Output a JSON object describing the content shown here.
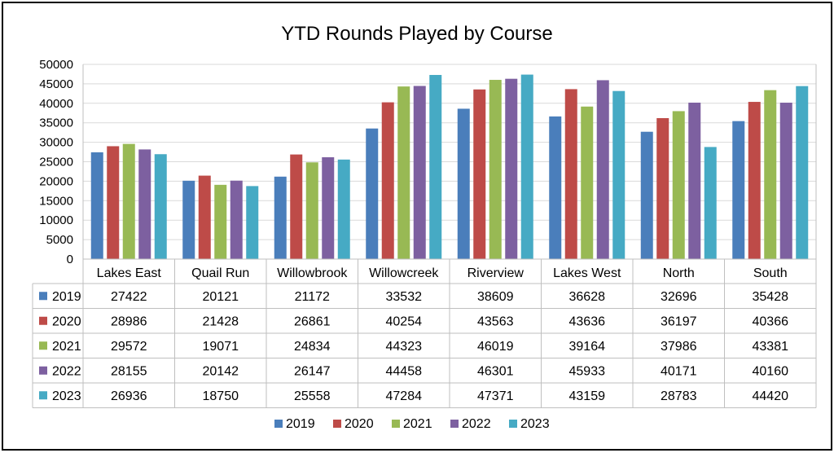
{
  "chart_data": {
    "type": "bar",
    "title": "YTD Rounds Played by Course",
    "categories": [
      "Lakes East",
      "Quail Run",
      "Willowbrook",
      "Willowcreek",
      "Riverview",
      "Lakes West",
      "North",
      "South"
    ],
    "series": [
      {
        "name": "2019",
        "color": "#4a7ebb",
        "values": [
          27422,
          20121,
          21172,
          33532,
          38609,
          36628,
          32696,
          35428
        ]
      },
      {
        "name": "2020",
        "color": "#be4b48",
        "values": [
          28986,
          21428,
          26861,
          40254,
          43563,
          43636,
          36197,
          40366
        ]
      },
      {
        "name": "2021",
        "color": "#98b954",
        "values": [
          29572,
          19071,
          24834,
          44323,
          46019,
          39164,
          37986,
          43381
        ]
      },
      {
        "name": "2022",
        "color": "#7d60a0",
        "values": [
          28155,
          20142,
          26147,
          44458,
          46301,
          45933,
          40171,
          40160
        ]
      },
      {
        "name": "2023",
        "color": "#46aac4",
        "values": [
          26936,
          18750,
          25558,
          47284,
          47371,
          43159,
          28783,
          44420
        ]
      }
    ],
    "ylim": [
      0,
      50000
    ],
    "yticks": [
      0,
      5000,
      10000,
      15000,
      20000,
      25000,
      30000,
      35000,
      40000,
      45000,
      50000
    ],
    "grid": true,
    "legend": "bottom",
    "data_table": true
  }
}
